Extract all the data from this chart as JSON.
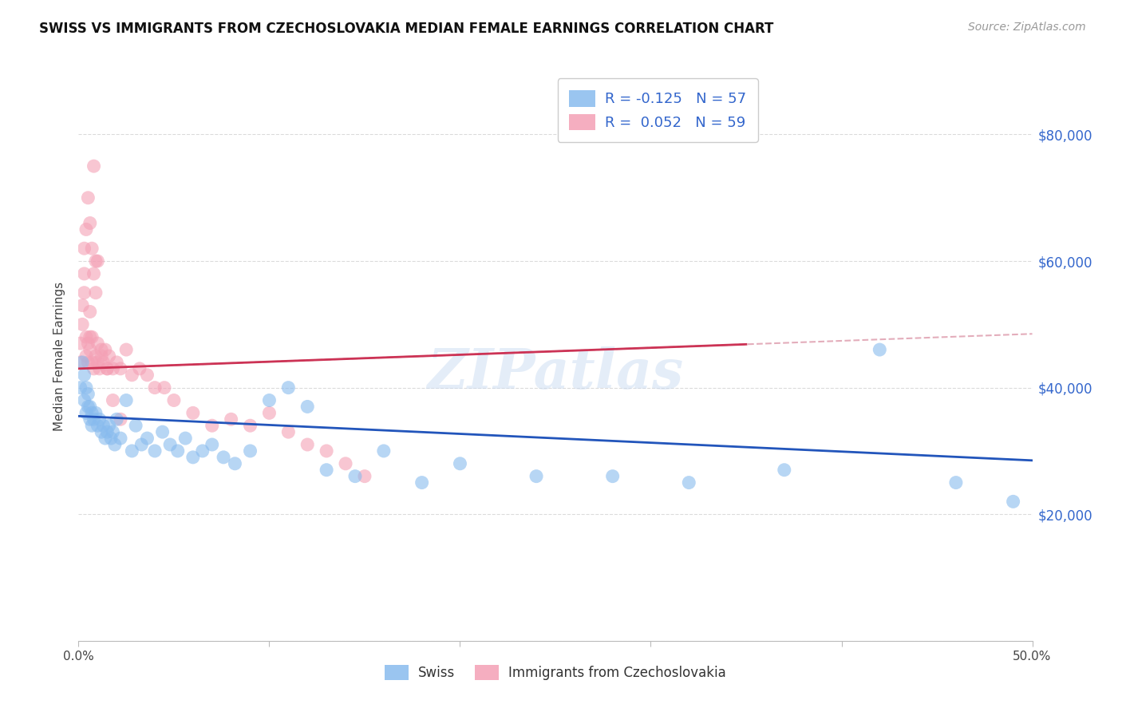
{
  "title": "SWISS VS IMMIGRANTS FROM CZECHOSLOVAKIA MEDIAN FEMALE EARNINGS CORRELATION CHART",
  "source": "Source: ZipAtlas.com",
  "ylabel": "Median Female Earnings",
  "xlim": [
    0.0,
    0.5
  ],
  "ylim": [
    0,
    90000
  ],
  "blue_color": "#88bbee",
  "pink_color": "#f4a0b5",
  "blue_line_color": "#2255bb",
  "pink_line_color": "#cc3355",
  "pink_dashed_color": "#dd99aa",
  "background_color": "#ffffff",
  "grid_color": "#cccccc",
  "watermark": "ZIPatlas",
  "blue_R": -0.125,
  "pink_R": 0.052,
  "blue_N": 57,
  "pink_N": 59,
  "title_color": "#111111",
  "source_color": "#999999",
  "right_yaxis_color": "#3366cc",
  "legend_text_color": "#3366cc",
  "swiss_x": [
    0.001,
    0.002,
    0.003,
    0.003,
    0.004,
    0.004,
    0.005,
    0.005,
    0.006,
    0.006,
    0.007,
    0.007,
    0.008,
    0.009,
    0.01,
    0.011,
    0.012,
    0.013,
    0.014,
    0.015,
    0.016,
    0.017,
    0.018,
    0.019,
    0.02,
    0.022,
    0.025,
    0.028,
    0.03,
    0.033,
    0.036,
    0.04,
    0.044,
    0.048,
    0.052,
    0.056,
    0.06,
    0.065,
    0.07,
    0.076,
    0.082,
    0.09,
    0.1,
    0.11,
    0.12,
    0.13,
    0.145,
    0.16,
    0.18,
    0.2,
    0.24,
    0.28,
    0.32,
    0.37,
    0.42,
    0.46,
    0.49
  ],
  "swiss_y": [
    40000,
    44000,
    38000,
    42000,
    36000,
    40000,
    37000,
    39000,
    35000,
    37000,
    36000,
    34000,
    35000,
    36000,
    34000,
    35000,
    33000,
    34000,
    32000,
    33000,
    34000,
    32000,
    33000,
    31000,
    35000,
    32000,
    38000,
    30000,
    34000,
    31000,
    32000,
    30000,
    33000,
    31000,
    30000,
    32000,
    29000,
    30000,
    31000,
    29000,
    28000,
    30000,
    38000,
    40000,
    37000,
    27000,
    26000,
    30000,
    25000,
    28000,
    26000,
    26000,
    25000,
    27000,
    46000,
    25000,
    22000
  ],
  "czecho_x": [
    0.001,
    0.001,
    0.002,
    0.002,
    0.003,
    0.003,
    0.003,
    0.004,
    0.004,
    0.004,
    0.005,
    0.005,
    0.005,
    0.006,
    0.006,
    0.006,
    0.006,
    0.007,
    0.007,
    0.007,
    0.008,
    0.008,
    0.009,
    0.009,
    0.01,
    0.01,
    0.011,
    0.012,
    0.013,
    0.014,
    0.015,
    0.016,
    0.018,
    0.02,
    0.022,
    0.025,
    0.028,
    0.032,
    0.036,
    0.04,
    0.045,
    0.05,
    0.06,
    0.07,
    0.08,
    0.09,
    0.1,
    0.11,
    0.12,
    0.13,
    0.14,
    0.15,
    0.01,
    0.012,
    0.015,
    0.018,
    0.022,
    0.008,
    0.009
  ],
  "czecho_y": [
    44000,
    47000,
    50000,
    53000,
    55000,
    58000,
    62000,
    45000,
    48000,
    65000,
    44000,
    47000,
    70000,
    46000,
    48000,
    52000,
    66000,
    44000,
    48000,
    62000,
    43000,
    58000,
    45000,
    60000,
    44000,
    47000,
    43000,
    46000,
    44000,
    46000,
    43000,
    45000,
    43000,
    44000,
    43000,
    46000,
    42000,
    43000,
    42000,
    40000,
    40000,
    38000,
    36000,
    34000,
    35000,
    34000,
    36000,
    33000,
    31000,
    30000,
    28000,
    26000,
    60000,
    45000,
    43000,
    38000,
    35000,
    75000,
    55000
  ]
}
